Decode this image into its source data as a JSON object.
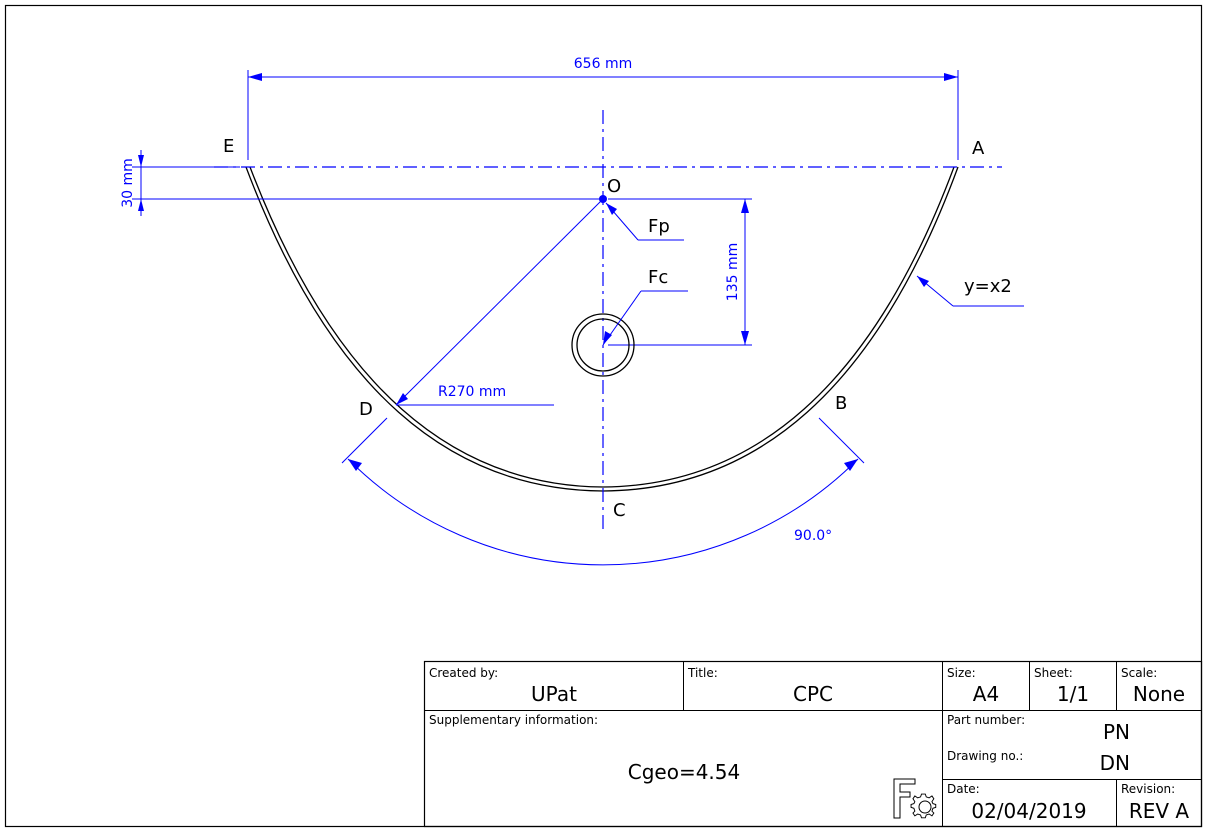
{
  "dimensions": {
    "width": "656 mm",
    "offset": "30 mm",
    "height": "135 mm",
    "radius": "R270 mm",
    "angle": "90.0°"
  },
  "points": {
    "A": "A",
    "B": "B",
    "C": "C",
    "D": "D",
    "E": "E",
    "O": "O"
  },
  "callouts": {
    "fp": "Fp",
    "fc": "Fc",
    "curve": "y=x2"
  },
  "title_block": {
    "created_by_label": "Created by:",
    "created_by": "UPat",
    "title_label": "Title:",
    "title": "CPC",
    "size_label": "Size:",
    "size": "A4",
    "sheet_label": "Sheet:",
    "sheet": "1/1",
    "scale_label": "Scale:",
    "scale": "None",
    "supp_label": "Supplementary information:",
    "supp": "Cgeo=4.54",
    "part_label": "Part number:",
    "part": "PN",
    "drawing_label": "Drawing no.:",
    "drawing": "DN",
    "date_label": "Date:",
    "date": "02/04/2019",
    "revision_label": "Revision:",
    "revision": "REV A"
  },
  "colors": {
    "dimension": "#0000ff",
    "geometry": "#000000"
  },
  "icons": [
    "freecad-logo-icon"
  ]
}
